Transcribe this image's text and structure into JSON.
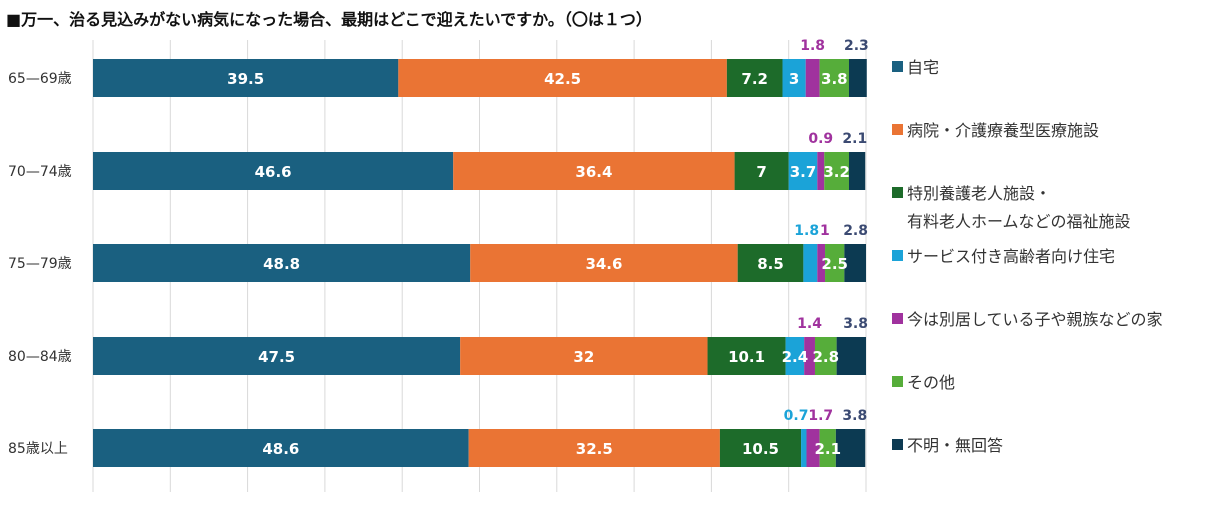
{
  "chart_data": {
    "type": "bar",
    "orientation": "horizontal",
    "stacked": true,
    "title": "■万一、治る見込みがない病気になった場合、最期はどこで迎えたいですか。（〇は１つ）",
    "xlabel": "",
    "ylabel": "",
    "xlim": [
      0,
      100
    ],
    "grid": true,
    "legend_position": "right",
    "categories": [
      "65—69歳",
      "70—74歳",
      "75—79歳",
      "80—84歳",
      "85歳以上"
    ],
    "series": [
      {
        "name": "自宅",
        "color": "#1a6080",
        "values": [
          39.5,
          46.6,
          48.8,
          47.5,
          48.6
        ]
      },
      {
        "name": "病院・介護療養型医療施設",
        "color": "#ea7434",
        "values": [
          42.5,
          36.4,
          34.6,
          32,
          32.5
        ]
      },
      {
        "name": "特別養護老人施設・",
        "name_line2": "有料老人ホームなどの福祉施設",
        "color": "#1d6b2a",
        "values": [
          7.2,
          7,
          8.5,
          10.1,
          10.5
        ]
      },
      {
        "name": "サービス付き高齢者向け住宅",
        "color": "#1ba3d8",
        "values": [
          3,
          3.7,
          1.8,
          2.4,
          0.7
        ]
      },
      {
        "name": "今は別居している子や親族などの家",
        "color": "#a0329e",
        "values": [
          1.8,
          0.9,
          1,
          1.4,
          1.7
        ]
      },
      {
        "name": "その他",
        "color": "#56ad3a",
        "values": [
          3.8,
          3.2,
          2.5,
          2.8,
          2.1
        ]
      },
      {
        "name": "不明・無回答",
        "color": "#0c3a52",
        "values": [
          2.3,
          2.1,
          2.8,
          3.8,
          3.8
        ]
      }
    ],
    "outside_label_colors": {
      "サービス付き高齢者向け住宅": "#1ba3d8",
      "今は別居している子や親族などの家": "#a0329e",
      "不明・無回答": "#3b4a72"
    }
  }
}
